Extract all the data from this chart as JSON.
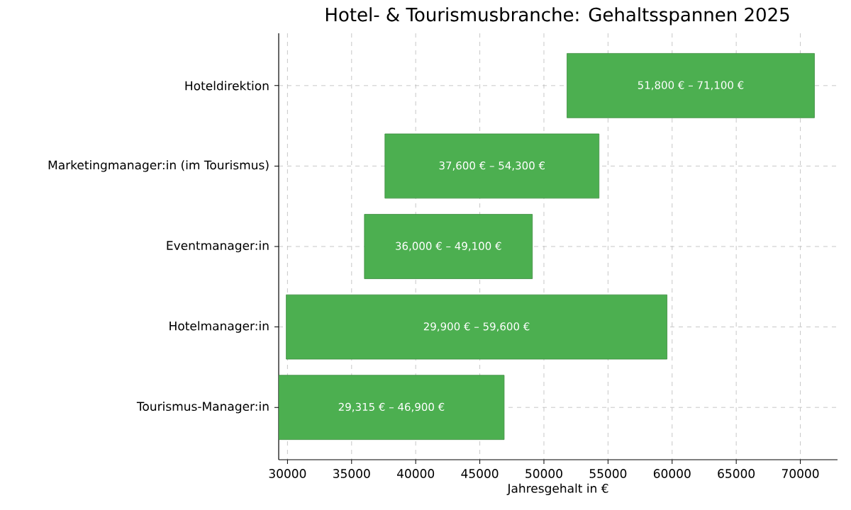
{
  "chart_data": {
    "type": "bar",
    "orientation": "horizontal",
    "title": "Hotel- & Tourismusbranche: Gehaltsspannen 2025",
    "xlabel": "Jahresgehalt in €",
    "categories": [
      "Hoteldirektion",
      "Marketingmanager:in (im Tourismus)",
      "Eventmanager:in",
      "Hotelmanager:in",
      "Tourismus-Manager:in"
    ],
    "base": [
      51800,
      37600,
      36000,
      29900,
      29315
    ],
    "values": [
      19300,
      16700,
      13100,
      29700,
      17585
    ],
    "annotations": [
      {
        "text": "51,800 € – 71,100 €",
        "x": 61450,
        "y": "Hoteldirektion"
      },
      {
        "text": "37,600 € – 54,300 €",
        "x": 45950,
        "y": "Marketingmanager:in (im Tourismus)"
      },
      {
        "text": "36,000 € – 49,100 €",
        "x": 42550,
        "y": "Eventmanager:in"
      },
      {
        "text": "29,900 € – 59,600 €",
        "x": 44750,
        "y": "Hotelmanager:in"
      },
      {
        "text": "29,315 € – 46,900 €",
        "x": 38107.5,
        "y": "Tourismus-Manager:in"
      }
    ],
    "color": "#4caf50",
    "xlim": [
      29315,
      72900
    ],
    "xticks": [
      30000,
      35000,
      40000,
      45000,
      50000,
      55000,
      60000,
      65000,
      70000
    ],
    "grid": true
  }
}
